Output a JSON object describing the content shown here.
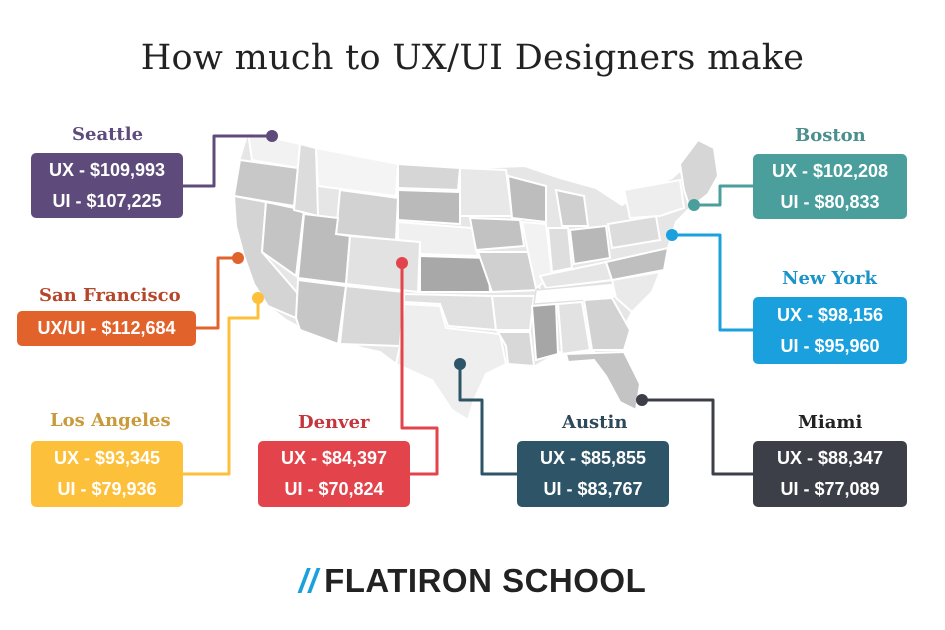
{
  "title": "How much to UX/UI Designers make",
  "logo": {
    "mark": "//",
    "text": "FLATIRON SCHOOL"
  },
  "cities": [
    {
      "id": "seattle",
      "name": "Seattle",
      "lines": [
        "UX - $109,993",
        "UI - $107,225"
      ],
      "color": "#5e4b7c"
    },
    {
      "id": "san-francisco",
      "name": "San Francisco",
      "lines": [
        "UX/UI - $112,684"
      ],
      "color": "#e2622c"
    },
    {
      "id": "los-angeles",
      "name": "Los Angeles",
      "lines": [
        "UX - $93,345",
        "UI - $79,936"
      ],
      "color": "#fdc03a"
    },
    {
      "id": "denver",
      "name": "Denver",
      "lines": [
        "UX - $84,397",
        "UI - $70,824"
      ],
      "color": "#e3434b"
    },
    {
      "id": "austin",
      "name": "Austin",
      "lines": [
        "UX - $85,855",
        "UI - $83,767"
      ],
      "color": "#2e5468"
    },
    {
      "id": "miami",
      "name": "Miami",
      "lines": [
        "UX - $88,347",
        "UI - $77,089"
      ],
      "color": "#3c3f47"
    },
    {
      "id": "boston",
      "name": "Boston",
      "lines": [
        "UX - $102,208",
        "UI - $80,833"
      ],
      "color": "#4a9f9c"
    },
    {
      "id": "new-york",
      "name": "New York",
      "lines": [
        "UX - $98,156",
        "UI - $95,960"
      ],
      "color": "#1aa1dd"
    }
  ],
  "city_label_colors": {
    "seattle": "#5e4b7c",
    "san-francisco": "#b6462a",
    "los-angeles": "#c99a3a",
    "denver": "#c6343c",
    "austin": "#2e4a5a",
    "miami": "#222222",
    "boston": "#4a8f8c",
    "new-york": "#1a93c9"
  }
}
